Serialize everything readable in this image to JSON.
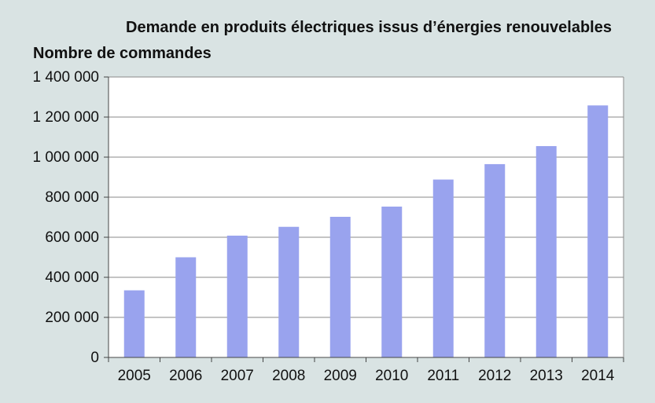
{
  "chart_data": {
    "type": "bar",
    "title": "Demande en produits électriques issus d’énergies renouvelables",
    "ylabel": "Nombre de commandes",
    "xlabel": "",
    "categories": [
      "2005",
      "2006",
      "2007",
      "2008",
      "2009",
      "2010",
      "2011",
      "2012",
      "2013",
      "2014"
    ],
    "values": [
      335000,
      500000,
      608000,
      652000,
      702000,
      753000,
      888000,
      965000,
      1055000,
      1258000
    ],
    "ylim": [
      0,
      1400000
    ],
    "yticks": [
      0,
      200000,
      400000,
      600000,
      800000,
      1000000,
      1200000,
      1400000
    ],
    "ytick_labels": [
      "0",
      "200 000",
      "400 000",
      "600 000",
      "800 000",
      "1 000 000",
      "1 200 000",
      "1 400 000"
    ],
    "grid": true,
    "bar_color": "#99a3ee"
  }
}
